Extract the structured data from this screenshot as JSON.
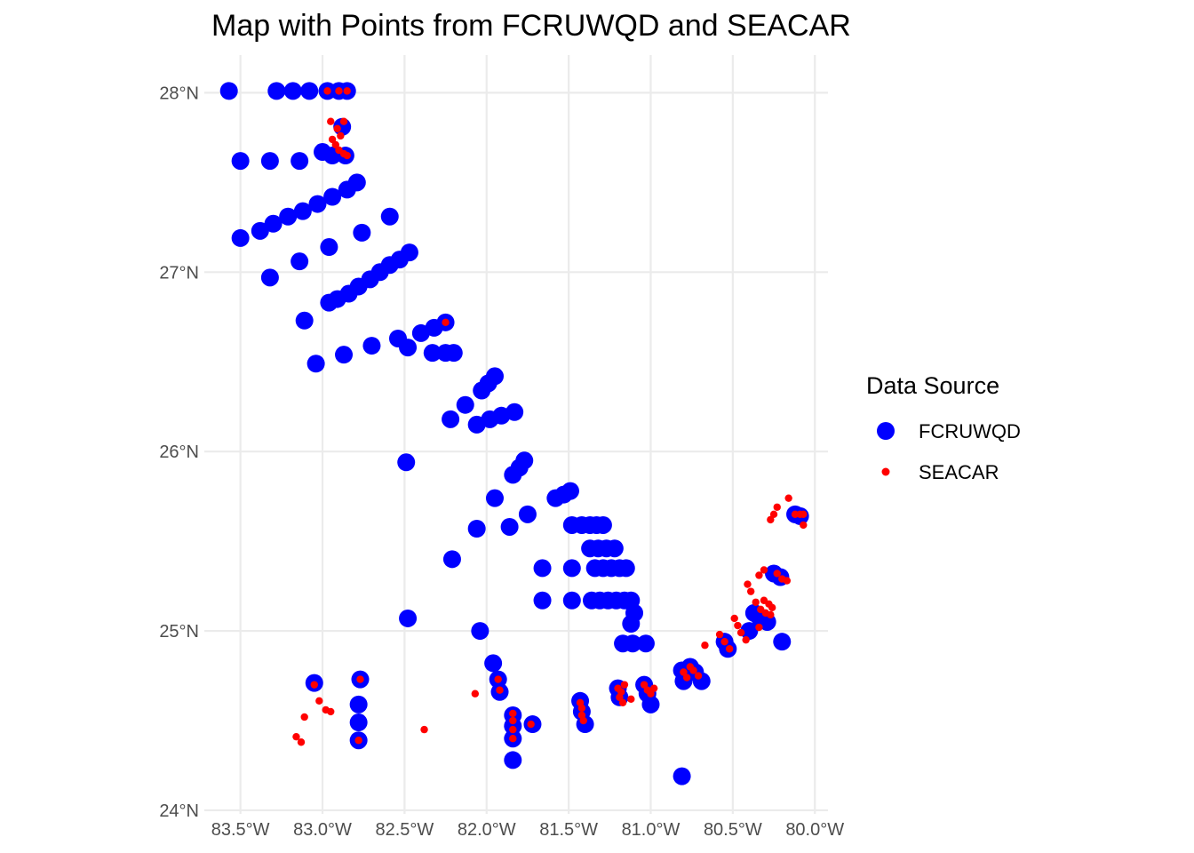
{
  "chart_data": {
    "type": "scatter",
    "title": "Map with Points from FCRUWQD and SEACAR",
    "xlabel": "",
    "ylabel": "",
    "xlim": [
      -83.72,
      -79.92
    ],
    "ylim": [
      23.98,
      28.21
    ],
    "x_ticks": [
      -83.5,
      -83.0,
      -82.5,
      -82.0,
      -81.5,
      -81.0,
      -80.5,
      -80.0
    ],
    "x_tick_labels": [
      "83.5°W",
      "83.0°W",
      "82.5°W",
      "82.0°W",
      "81.5°W",
      "81.0°W",
      "80.5°W",
      "80.0°W"
    ],
    "y_ticks": [
      24,
      25,
      26,
      27,
      28
    ],
    "y_tick_labels": [
      "24°N",
      "25°N",
      "26°N",
      "27°N",
      "28°N"
    ],
    "grid": true,
    "legend": {
      "title": "Data Source",
      "placement": "right"
    },
    "series": [
      {
        "name": "FCRUWQD",
        "color": "#0000ff",
        "marker": "large-circle",
        "points": [
          [
            -83.57,
            28.01
          ],
          [
            -83.28,
            28.01
          ],
          [
            -83.18,
            28.01
          ],
          [
            -83.08,
            28.01
          ],
          [
            -82.97,
            28.01
          ],
          [
            -82.9,
            28.01
          ],
          [
            -82.85,
            28.01
          ],
          [
            -82.88,
            27.81
          ],
          [
            -83.5,
            27.62
          ],
          [
            -83.32,
            27.62
          ],
          [
            -83.14,
            27.62
          ],
          [
            -83.0,
            27.67
          ],
          [
            -82.94,
            27.65
          ],
          [
            -82.86,
            27.65
          ],
          [
            -82.79,
            27.5
          ],
          [
            -82.85,
            27.46
          ],
          [
            -82.94,
            27.42
          ],
          [
            -83.03,
            27.38
          ],
          [
            -83.12,
            27.34
          ],
          [
            -83.21,
            27.31
          ],
          [
            -83.3,
            27.27
          ],
          [
            -83.38,
            27.23
          ],
          [
            -83.5,
            27.19
          ],
          [
            -82.59,
            27.31
          ],
          [
            -82.76,
            27.22
          ],
          [
            -82.96,
            27.14
          ],
          [
            -83.14,
            27.06
          ],
          [
            -83.32,
            26.97
          ],
          [
            -82.47,
            27.11
          ],
          [
            -82.53,
            27.07
          ],
          [
            -82.59,
            27.04
          ],
          [
            -82.65,
            27.0
          ],
          [
            -82.71,
            26.96
          ],
          [
            -82.78,
            26.92
          ],
          [
            -82.84,
            26.88
          ],
          [
            -82.91,
            26.85
          ],
          [
            -82.96,
            26.83
          ],
          [
            -82.25,
            26.72
          ],
          [
            -82.32,
            26.69
          ],
          [
            -82.4,
            26.66
          ],
          [
            -82.54,
            26.63
          ],
          [
            -82.48,
            26.58
          ],
          [
            -82.7,
            26.59
          ],
          [
            -82.87,
            26.54
          ],
          [
            -83.04,
            26.49
          ],
          [
            -83.11,
            26.73
          ],
          [
            -82.33,
            26.55
          ],
          [
            -82.25,
            26.55
          ],
          [
            -82.2,
            26.55
          ],
          [
            -81.95,
            26.42
          ],
          [
            -81.99,
            26.38
          ],
          [
            -82.03,
            26.34
          ],
          [
            -82.13,
            26.26
          ],
          [
            -82.22,
            26.18
          ],
          [
            -82.06,
            26.15
          ],
          [
            -81.98,
            26.18
          ],
          [
            -81.91,
            26.2
          ],
          [
            -81.83,
            26.22
          ],
          [
            -82.49,
            25.94
          ],
          [
            -81.77,
            25.95
          ],
          [
            -81.8,
            25.91
          ],
          [
            -81.84,
            25.87
          ],
          [
            -81.95,
            25.74
          ],
          [
            -81.75,
            25.65
          ],
          [
            -81.86,
            25.58
          ],
          [
            -82.06,
            25.57
          ],
          [
            -82.21,
            25.4
          ],
          [
            -81.49,
            25.78
          ],
          [
            -81.53,
            25.76
          ],
          [
            -81.58,
            25.74
          ],
          [
            -81.48,
            25.59
          ],
          [
            -81.42,
            25.59
          ],
          [
            -81.37,
            25.59
          ],
          [
            -81.33,
            25.59
          ],
          [
            -81.29,
            25.59
          ],
          [
            -81.37,
            25.46
          ],
          [
            -81.32,
            25.46
          ],
          [
            -81.27,
            25.46
          ],
          [
            -81.22,
            25.46
          ],
          [
            -81.66,
            25.35
          ],
          [
            -81.48,
            25.35
          ],
          [
            -81.34,
            25.35
          ],
          [
            -81.29,
            25.35
          ],
          [
            -81.24,
            25.35
          ],
          [
            -81.19,
            25.35
          ],
          [
            -81.15,
            25.35
          ],
          [
            -81.66,
            25.17
          ],
          [
            -81.48,
            25.17
          ],
          [
            -81.36,
            25.17
          ],
          [
            -81.31,
            25.17
          ],
          [
            -81.26,
            25.17
          ],
          [
            -81.21,
            25.17
          ],
          [
            -81.16,
            25.17
          ],
          [
            -81.12,
            25.17
          ],
          [
            -81.1,
            25.1
          ],
          [
            -81.12,
            25.04
          ],
          [
            -81.17,
            24.93
          ],
          [
            -81.11,
            24.93
          ],
          [
            -81.03,
            24.93
          ],
          [
            -82.48,
            25.07
          ],
          [
            -82.04,
            25.0
          ],
          [
            -81.96,
            24.82
          ],
          [
            -81.93,
            24.73
          ],
          [
            -81.92,
            24.66
          ],
          [
            -83.05,
            24.71
          ],
          [
            -82.77,
            24.73
          ],
          [
            -82.78,
            24.59
          ],
          [
            -82.78,
            24.49
          ],
          [
            -82.78,
            24.39
          ],
          [
            -81.84,
            24.53
          ],
          [
            -81.84,
            24.47
          ],
          [
            -81.84,
            24.4
          ],
          [
            -81.84,
            24.28
          ],
          [
            -81.72,
            24.48
          ],
          [
            -81.43,
            24.61
          ],
          [
            -81.42,
            24.55
          ],
          [
            -81.4,
            24.48
          ],
          [
            -81.2,
            24.68
          ],
          [
            -81.19,
            24.63
          ],
          [
            -81.04,
            24.7
          ],
          [
            -81.02,
            24.65
          ],
          [
            -81.0,
            24.59
          ],
          [
            -80.81,
            24.78
          ],
          [
            -80.8,
            24.72
          ],
          [
            -80.76,
            24.8
          ],
          [
            -80.73,
            24.77
          ],
          [
            -80.69,
            24.72
          ],
          [
            -80.81,
            24.19
          ],
          [
            -80.55,
            24.94
          ],
          [
            -80.53,
            24.9
          ],
          [
            -80.4,
            25.0
          ],
          [
            -80.37,
            25.1
          ],
          [
            -80.34,
            25.08
          ],
          [
            -80.32,
            25.06
          ],
          [
            -80.29,
            25.05
          ],
          [
            -80.2,
            24.94
          ],
          [
            -80.25,
            25.32
          ],
          [
            -80.21,
            25.3
          ],
          [
            -80.12,
            25.65
          ],
          [
            -80.09,
            25.64
          ]
        ]
      },
      {
        "name": "SEACAR",
        "color": "#ff0000",
        "marker": "small-circle",
        "points": [
          [
            -82.97,
            28.01
          ],
          [
            -82.9,
            28.01
          ],
          [
            -82.85,
            28.01
          ],
          [
            -82.95,
            27.84
          ],
          [
            -82.87,
            27.84
          ],
          [
            -82.91,
            27.8
          ],
          [
            -82.89,
            27.76
          ],
          [
            -82.94,
            27.74
          ],
          [
            -82.92,
            27.71
          ],
          [
            -82.9,
            27.68
          ],
          [
            -82.87,
            27.66
          ],
          [
            -82.85,
            27.65
          ],
          [
            -82.25,
            26.72
          ],
          [
            -83.05,
            24.7
          ],
          [
            -82.77,
            24.73
          ],
          [
            -83.02,
            24.61
          ],
          [
            -82.98,
            24.56
          ],
          [
            -82.95,
            24.55
          ],
          [
            -83.11,
            24.52
          ],
          [
            -83.16,
            24.41
          ],
          [
            -83.13,
            24.38
          ],
          [
            -82.78,
            24.39
          ],
          [
            -82.38,
            24.45
          ],
          [
            -82.07,
            24.65
          ],
          [
            -81.93,
            24.73
          ],
          [
            -81.92,
            24.67
          ],
          [
            -81.84,
            24.54
          ],
          [
            -81.84,
            24.5
          ],
          [
            -81.84,
            24.45
          ],
          [
            -81.84,
            24.4
          ],
          [
            -81.73,
            24.48
          ],
          [
            -81.43,
            24.6
          ],
          [
            -81.42,
            24.57
          ],
          [
            -81.42,
            24.53
          ],
          [
            -81.41,
            24.5
          ],
          [
            -81.2,
            24.68
          ],
          [
            -81.18,
            24.66
          ],
          [
            -81.19,
            24.63
          ],
          [
            -81.17,
            24.6
          ],
          [
            -81.16,
            24.7
          ],
          [
            -81.12,
            24.62
          ],
          [
            -81.04,
            24.7
          ],
          [
            -81.02,
            24.67
          ],
          [
            -81.0,
            24.65
          ],
          [
            -80.98,
            24.68
          ],
          [
            -80.8,
            24.77
          ],
          [
            -80.78,
            24.74
          ],
          [
            -80.76,
            24.8
          ],
          [
            -80.74,
            24.78
          ],
          [
            -80.71,
            24.75
          ],
          [
            -80.67,
            24.92
          ],
          [
            -80.58,
            24.98
          ],
          [
            -80.55,
            24.94
          ],
          [
            -80.52,
            24.9
          ],
          [
            -80.49,
            25.07
          ],
          [
            -80.47,
            25.03
          ],
          [
            -80.45,
            24.99
          ],
          [
            -80.42,
            24.95
          ],
          [
            -80.41,
            25.26
          ],
          [
            -80.39,
            25.22
          ],
          [
            -80.36,
            25.16
          ],
          [
            -80.34,
            25.31
          ],
          [
            -80.31,
            25.34
          ],
          [
            -80.33,
            25.12
          ],
          [
            -80.3,
            25.1
          ],
          [
            -80.27,
            25.09
          ],
          [
            -80.34,
            25.02
          ],
          [
            -80.31,
            25.17
          ],
          [
            -80.28,
            25.15
          ],
          [
            -80.26,
            25.13
          ],
          [
            -80.23,
            25.32
          ],
          [
            -80.2,
            25.29
          ],
          [
            -80.17,
            25.28
          ],
          [
            -80.27,
            25.62
          ],
          [
            -80.25,
            25.65
          ],
          [
            -80.23,
            25.69
          ],
          [
            -80.16,
            25.74
          ],
          [
            -80.12,
            25.65
          ],
          [
            -80.09,
            25.65
          ],
          [
            -80.07,
            25.65
          ],
          [
            -80.07,
            25.59
          ]
        ]
      }
    ]
  }
}
